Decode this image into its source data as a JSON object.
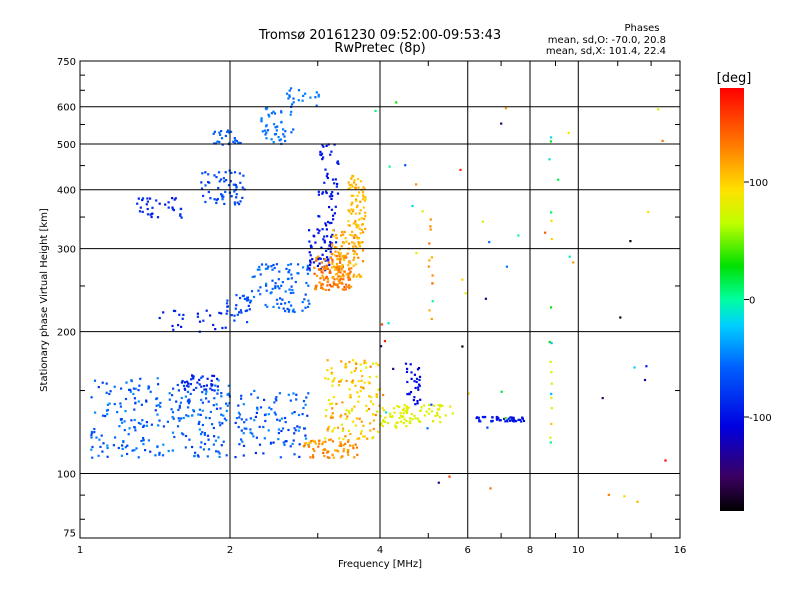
{
  "chart_data": {
    "type": "scatter",
    "title": "Tromsø 20161230 09:52:00-09:53:43",
    "subtitle": "RwPretec (8p)",
    "stats": {
      "heading": "Phases",
      "line1": "mean, sd,O: -70.0, 20.8",
      "line2": "mean, sd,X: 101.4, 22.4"
    },
    "xlabel": "Frequency [MHz]",
    "ylabel": "Stationary phase Virtual Height [km]",
    "xscale": "log",
    "yscale": "log",
    "xlim": [
      1,
      16
    ],
    "ylim": [
      73,
      750
    ],
    "xticks": [
      1,
      2,
      4,
      6,
      8,
      10,
      16
    ],
    "xtick_labels": [
      "1",
      "2",
      "4",
      "6",
      "8",
      "10",
      "16"
    ],
    "yticks": [
      75,
      100,
      200,
      300,
      400,
      500,
      600,
      750
    ],
    "ytick_labels": [
      "75",
      "100",
      "200",
      "300",
      "400",
      "500",
      "600",
      "750"
    ],
    "grid": true,
    "colorbar": {
      "label": "[deg]",
      "range": [
        -180,
        180
      ],
      "ticks": [
        100,
        0,
        -100
      ],
      "tick_labels": [
        "100",
        "0",
        "-100"
      ]
    },
    "clusters": [
      {
        "f0": 1.05,
        "f1": 2.0,
        "h0": 108,
        "h1": 160,
        "p0": -80,
        "p1": -40,
        "n": 260
      },
      {
        "f0": 2.05,
        "f1": 2.9,
        "h0": 108,
        "h1": 150,
        "p0": -85,
        "p1": -40,
        "n": 110
      },
      {
        "f0": 1.6,
        "f1": 1.9,
        "h0": 150,
        "h1": 162,
        "p0": -100,
        "p1": -80,
        "n": 35
      },
      {
        "f0": 2.8,
        "f1": 3.6,
        "h0": 108,
        "h1": 118,
        "p0": 105,
        "p1": 140,
        "n": 70
      },
      {
        "f0": 3.1,
        "f1": 4.0,
        "h0": 118,
        "h1": 175,
        "p0": 75,
        "p1": 130,
        "n": 140
      },
      {
        "f0": 4.0,
        "f1": 4.6,
        "h0": 125,
        "h1": 140,
        "p0": 70,
        "p1": 90,
        "n": 40
      },
      {
        "f0": 4.5,
        "f1": 4.85,
        "h0": 140,
        "h1": 172,
        "p0": -110,
        "p1": -95,
        "n": 30
      },
      {
        "f0": 4.4,
        "f1": 5.6,
        "h0": 128,
        "h1": 140,
        "p0": 70,
        "p1": 85,
        "n": 45
      },
      {
        "f0": 6.2,
        "f1": 7.8,
        "h0": 129,
        "h1": 132,
        "p0": -105,
        "p1": -90,
        "n": 45
      },
      {
        "f0": 1.3,
        "f1": 1.6,
        "h0": 345,
        "h1": 385,
        "p0": -100,
        "p1": -80,
        "n": 35
      },
      {
        "f0": 1.4,
        "f1": 2.0,
        "h0": 200,
        "h1": 222,
        "p0": -100,
        "p1": -80,
        "n": 25
      },
      {
        "f0": 1.95,
        "f1": 2.2,
        "h0": 205,
        "h1": 240,
        "p0": -80,
        "p1": -60,
        "n": 30
      },
      {
        "f0": 2.2,
        "f1": 2.9,
        "h0": 220,
        "h1": 280,
        "p0": -70,
        "p1": -45,
        "n": 95
      },
      {
        "f0": 1.75,
        "f1": 2.15,
        "h0": 370,
        "h1": 440,
        "p0": -80,
        "p1": -60,
        "n": 60
      },
      {
        "f0": 1.85,
        "f1": 2.1,
        "h0": 495,
        "h1": 535,
        "p0": -65,
        "p1": -55,
        "n": 25
      },
      {
        "f0": 2.3,
        "f1": 2.7,
        "h0": 500,
        "h1": 600,
        "p0": -60,
        "p1": -45,
        "n": 45
      },
      {
        "f0": 2.6,
        "f1": 3.05,
        "h0": 600,
        "h1": 660,
        "p0": -60,
        "p1": -45,
        "n": 20
      },
      {
        "f0": 2.85,
        "f1": 3.2,
        "h0": 270,
        "h1": 330,
        "p0": -110,
        "p1": -90,
        "n": 50
      },
      {
        "f0": 3.0,
        "f1": 3.3,
        "h0": 300,
        "h1": 500,
        "p0": -110,
        "p1": -85,
        "n": 60
      },
      {
        "f0": 2.95,
        "f1": 3.5,
        "h0": 245,
        "h1": 290,
        "p0": 115,
        "p1": 150,
        "n": 120
      },
      {
        "f0": 3.2,
        "f1": 3.7,
        "h0": 260,
        "h1": 330,
        "p0": 100,
        "p1": 130,
        "n": 110
      },
      {
        "f0": 3.45,
        "f1": 3.75,
        "h0": 330,
        "h1": 430,
        "p0": 95,
        "p1": 120,
        "n": 70
      },
      {
        "f0": 5.0,
        "f1": 5.1,
        "h0": 205,
        "h1": 360,
        "p0": 110,
        "p1": 140,
        "n": 12
      },
      {
        "f0": 8.75,
        "f1": 8.85,
        "h0": 110,
        "h1": 600,
        "p0": -40,
        "p1": 120,
        "n": 18
      },
      {
        "f0": 3.9,
        "f1": 15.0,
        "h0": 80,
        "h1": 650,
        "p0": -180,
        "p1": 180,
        "n": 55
      }
    ]
  }
}
